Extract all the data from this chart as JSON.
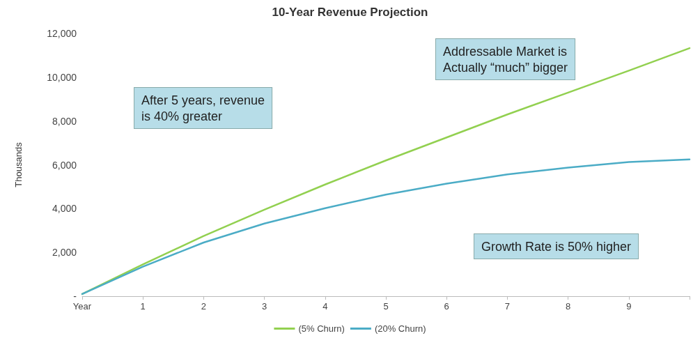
{
  "chart_data": {
    "type": "line",
    "title": "10-Year Revenue Projection",
    "ylabel": "Thousands",
    "x": [
      0,
      1,
      2,
      3,
      4,
      5,
      6,
      7,
      8,
      9,
      10
    ],
    "series": [
      {
        "name": "(5% Churn)",
        "color": "#92d050",
        "values": [
          100,
          1450,
          2750,
          3950,
          5100,
          6200,
          7250,
          8300,
          9300,
          10300,
          11330
        ]
      },
      {
        "name": "(20% Churn)",
        "color": "#4bacc6",
        "values": [
          100,
          1350,
          2450,
          3320,
          4020,
          4640,
          5140,
          5560,
          5870,
          6130,
          6250
        ]
      }
    ],
    "xlim": [
      0,
      10
    ],
    "xticks": [
      {
        "value": 0,
        "label": "Year"
      },
      1,
      2,
      3,
      4,
      5,
      6,
      7,
      8,
      9,
      {
        "value": 10,
        "label": null
      }
    ],
    "ylim": [
      0,
      12000
    ],
    "yticks": [
      {
        "value": 0,
        "label": "-"
      },
      {
        "value": 2000,
        "label": "2,000"
      },
      {
        "value": 4000,
        "label": "4,000"
      },
      {
        "value": 6000,
        "label": "6,000"
      },
      {
        "value": 8000,
        "label": "8,000"
      },
      {
        "value": 10000,
        "label": "10,000"
      },
      {
        "value": 12000,
        "label": "12,000"
      }
    ],
    "annotations": [
      "After 5 years, revenue\nis 40% greater",
      "Addressable Market is\nActually “much” bigger",
      "Growth Rate is 50% higher"
    ],
    "grid": false,
    "legend": "bottom",
    "marker": "none",
    "line_style": "solid"
  }
}
